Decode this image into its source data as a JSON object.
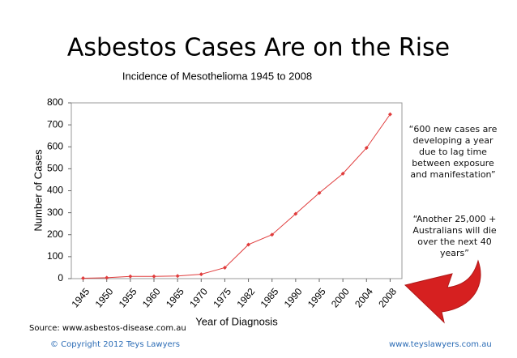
{
  "slide_title": "Asbestos Cases Are on the Rise",
  "source": "Source: www.asbestos-disease.com.au",
  "copyright": "© Copyright 2012 Teys Lawyers",
  "website": "www.teyslawyers.com.au",
  "chart_data": {
    "type": "line",
    "title": "Incidence of Mesothelioma 1945 to 2008",
    "x_label": "Year of Diagnosis",
    "y_label": "Number of Cases",
    "categories": [
      "1945",
      "1950",
      "1955",
      "1960",
      "1965",
      "1970",
      "1975",
      "1982",
      "1985",
      "1990",
      "1995",
      "2000",
      "2004",
      "2008"
    ],
    "values": [
      2,
      4,
      10,
      10,
      12,
      20,
      50,
      155,
      200,
      295,
      390,
      478,
      595,
      748
    ],
    "color": "#e03c3c",
    "ylim": [
      0,
      800
    ],
    "yticks": [
      0,
      100,
      200,
      300,
      400,
      500,
      600,
      700,
      800
    ],
    "annotations": [
      "“600 new cases are developing a year due to lag time between exposure and manifestation”",
      "“Another 25,000 + Australians will die over the next 40 years”"
    ]
  }
}
